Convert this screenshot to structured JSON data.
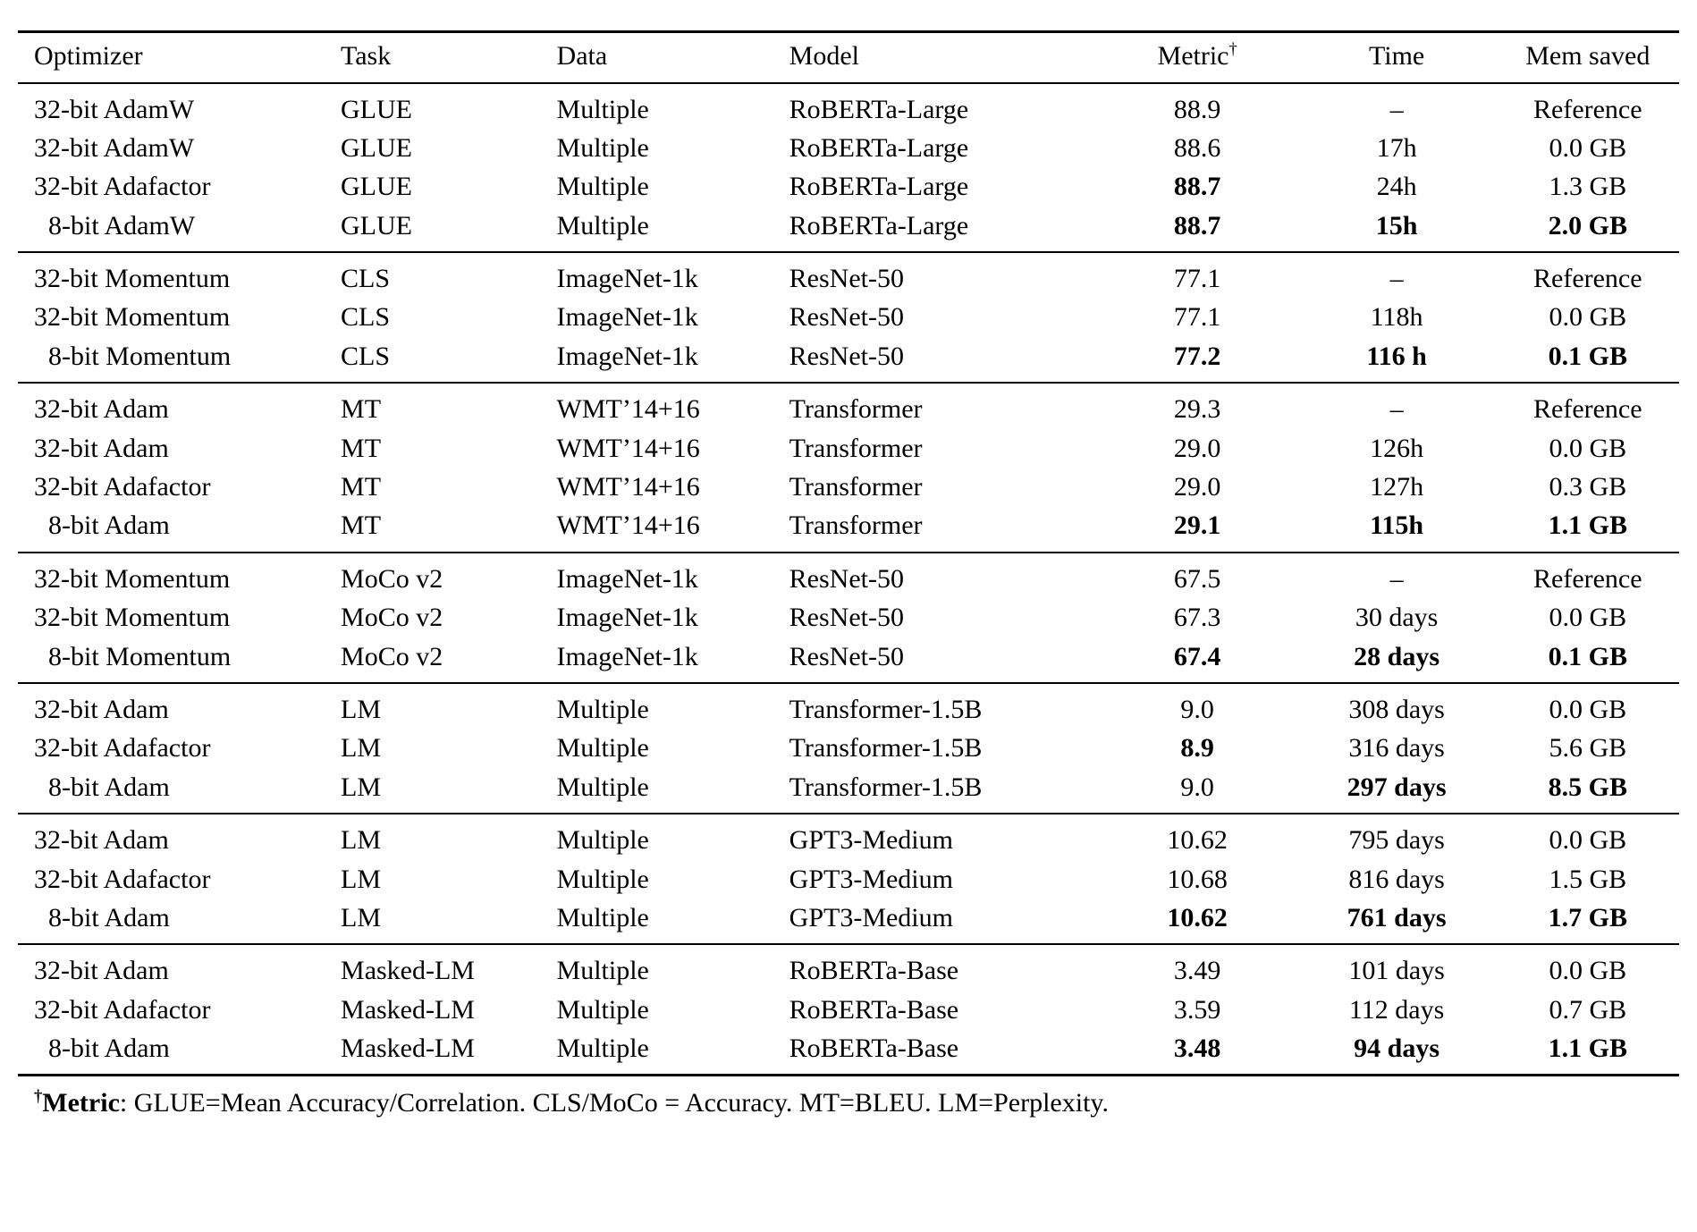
{
  "page": {
    "background": "#ffffff",
    "text_color": "#000000"
  },
  "table": {
    "columns": [
      {
        "label": "Optimizer"
      },
      {
        "label": "Task"
      },
      {
        "label": "Data"
      },
      {
        "label": "Model"
      },
      {
        "label": "Metric",
        "sup": "†"
      },
      {
        "label": "Time"
      },
      {
        "label": "Mem saved"
      }
    ],
    "groups": [
      {
        "name": "glue",
        "rows": [
          {
            "cells": [
              "32-bit AdamW",
              "GLUE",
              "Multiple",
              "RoBERTa-Large",
              "88.9",
              "–",
              "Reference"
            ],
            "bold": []
          },
          {
            "cells": [
              "32-bit AdamW",
              "GLUE",
              "Multiple",
              "RoBERTa-Large",
              "88.6",
              "17h",
              "0.0 GB"
            ],
            "bold": []
          },
          {
            "cells": [
              "32-bit Adafactor",
              "GLUE",
              "Multiple",
              "RoBERTa-Large",
              "88.7",
              "24h",
              "1.3 GB"
            ],
            "bold": [
              4
            ]
          },
          {
            "cells": [
              "8-bit AdamW",
              "GLUE",
              "Multiple",
              "RoBERTa-Large",
              "88.7",
              "15h",
              "2.0 GB"
            ],
            "bold": [
              4,
              5,
              6
            ]
          }
        ]
      },
      {
        "name": "cls",
        "rows": [
          {
            "cells": [
              "32-bit Momentum",
              "CLS",
              "ImageNet-1k",
              "ResNet-50",
              "77.1",
              "–",
              "Reference"
            ],
            "bold": []
          },
          {
            "cells": [
              "32-bit Momentum",
              "CLS",
              "ImageNet-1k",
              "ResNet-50",
              "77.1",
              "118h",
              "0.0 GB"
            ],
            "bold": []
          },
          {
            "cells": [
              "8-bit Momentum",
              "CLS",
              "ImageNet-1k",
              "ResNet-50",
              "77.2",
              "116 h",
              "0.1 GB"
            ],
            "bold": [
              4,
              5,
              6
            ]
          }
        ]
      },
      {
        "name": "mt",
        "rows": [
          {
            "cells": [
              "32-bit Adam",
              "MT",
              "WMT’14+16",
              "Transformer",
              "29.3",
              "–",
              "Reference"
            ],
            "bold": []
          },
          {
            "cells": [
              "32-bit Adam",
              "MT",
              "WMT’14+16",
              "Transformer",
              "29.0",
              "126h",
              "0.0 GB"
            ],
            "bold": []
          },
          {
            "cells": [
              "32-bit Adafactor",
              "MT",
              "WMT’14+16",
              "Transformer",
              "29.0",
              "127h",
              "0.3 GB"
            ],
            "bold": []
          },
          {
            "cells": [
              "8-bit Adam",
              "MT",
              "WMT’14+16",
              "Transformer",
              "29.1",
              "115h",
              "1.1 GB"
            ],
            "bold": [
              4,
              5,
              6
            ]
          }
        ]
      },
      {
        "name": "moco-v2",
        "rows": [
          {
            "cells": [
              "32-bit Momentum",
              "MoCo v2",
              "ImageNet-1k",
              "ResNet-50",
              "67.5",
              "–",
              "Reference"
            ],
            "bold": []
          },
          {
            "cells": [
              "32-bit Momentum",
              "MoCo v2",
              "ImageNet-1k",
              "ResNet-50",
              "67.3",
              "30 days",
              "0.0 GB"
            ],
            "bold": []
          },
          {
            "cells": [
              "8-bit Momentum",
              "MoCo v2",
              "ImageNet-1k",
              "ResNet-50",
              "67.4",
              "28 days",
              "0.1 GB"
            ],
            "bold": [
              4,
              5,
              6
            ]
          }
        ]
      },
      {
        "name": "lm-transformer-1-5b",
        "rows": [
          {
            "cells": [
              "32-bit Adam",
              "LM",
              "Multiple",
              "Transformer-1.5B",
              "9.0",
              "308 days",
              "0.0 GB"
            ],
            "bold": []
          },
          {
            "cells": [
              "32-bit Adafactor",
              "LM",
              "Multiple",
              "Transformer-1.5B",
              "8.9",
              "316 days",
              "5.6 GB"
            ],
            "bold": [
              4
            ]
          },
          {
            "cells": [
              "8-bit Adam",
              "LM",
              "Multiple",
              "Transformer-1.5B",
              "9.0",
              "297 days",
              "8.5 GB"
            ],
            "bold": [
              5,
              6
            ]
          }
        ]
      },
      {
        "name": "lm-gpt3-medium",
        "rows": [
          {
            "cells": [
              "32-bit Adam",
              "LM",
              "Multiple",
              "GPT3-Medium",
              "10.62",
              "795 days",
              "0.0 GB"
            ],
            "bold": []
          },
          {
            "cells": [
              "32-bit Adafactor",
              "LM",
              "Multiple",
              "GPT3-Medium",
              "10.68",
              "816 days",
              "1.5 GB"
            ],
            "bold": []
          },
          {
            "cells": [
              "8-bit Adam",
              "LM",
              "Multiple",
              "GPT3-Medium",
              "10.62",
              "761 days",
              "1.7 GB"
            ],
            "bold": [
              4,
              5,
              6
            ]
          }
        ]
      },
      {
        "name": "masked-lm",
        "rows": [
          {
            "cells": [
              "32-bit Adam",
              "Masked-LM",
              "Multiple",
              "RoBERTa-Base",
              "3.49",
              "101 days",
              "0.0 GB"
            ],
            "bold": []
          },
          {
            "cells": [
              "32-bit Adafactor",
              "Masked-LM",
              "Multiple",
              "RoBERTa-Base",
              "3.59",
              "112 days",
              "0.7 GB"
            ],
            "bold": []
          },
          {
            "cells": [
              "8-bit Adam",
              "Masked-LM",
              "Multiple",
              "RoBERTa-Base",
              "3.48",
              "94 days",
              "1.1 GB"
            ],
            "bold": [
              4,
              5,
              6
            ]
          }
        ]
      }
    ],
    "footnote": {
      "sup": "†",
      "bold_label": "Metric",
      "text": ": GLUE=Mean Accuracy/Correlation. CLS/MoCo = Accuracy. MT=BLEU. LM=Perplexity."
    }
  }
}
